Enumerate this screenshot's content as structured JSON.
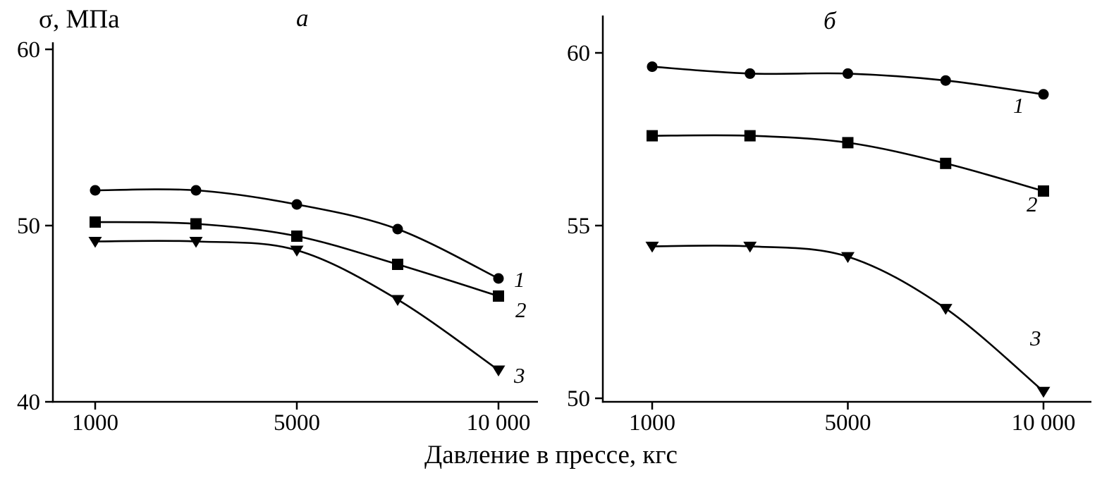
{
  "figure": {
    "y_axis_title": "σ, МПа",
    "x_axis_title": "Давление в прессе, кгс"
  },
  "colors": {
    "line": "#000000",
    "marker": "#000000",
    "text": "#000000",
    "background": "#ffffff"
  },
  "chart_data": [
    {
      "type": "line",
      "panel_label": "а",
      "x_label": "Давление в прессе, кгс",
      "y_label": "σ, МПа",
      "x": [
        1000,
        3000,
        5000,
        7500,
        10000
      ],
      "x_tick_labels": [
        "1000",
        "5000",
        "10 000"
      ],
      "x_tick_positions": [
        0,
        2,
        4
      ],
      "ylim": [
        40,
        60
      ],
      "y_ticks": [
        60,
        50,
        40
      ],
      "grid": false,
      "legend": "inline-numbers",
      "series": [
        {
          "name": "1",
          "marker": "circle",
          "values": [
            52.0,
            52.0,
            51.2,
            49.8,
            47.0
          ]
        },
        {
          "name": "2",
          "marker": "square",
          "values": [
            50.2,
            50.1,
            49.4,
            47.8,
            46.0
          ]
        },
        {
          "name": "3",
          "marker": "triangle-down",
          "values": [
            49.1,
            49.1,
            48.6,
            45.8,
            41.8
          ]
        }
      ]
    },
    {
      "type": "line",
      "panel_label": "б",
      "x_label": "Давление в прессе, кгс",
      "y_label": "σ, МПа",
      "x": [
        1000,
        3000,
        5000,
        7500,
        10000
      ],
      "x_tick_labels": [
        "1000",
        "5000",
        "10 000"
      ],
      "x_tick_positions": [
        0,
        2,
        4
      ],
      "ylim": [
        50,
        60
      ],
      "y_ticks": [
        60,
        55,
        50
      ],
      "grid": false,
      "legend": "inline-numbers",
      "series": [
        {
          "name": "1",
          "marker": "circle",
          "values": [
            59.6,
            59.4,
            59.4,
            59.2,
            58.8
          ]
        },
        {
          "name": "2",
          "marker": "square",
          "values": [
            57.6,
            57.6,
            57.4,
            56.8,
            56.0
          ]
        },
        {
          "name": "3",
          "marker": "triangle-down",
          "values": [
            54.4,
            54.4,
            54.1,
            52.6,
            50.2
          ]
        }
      ]
    }
  ]
}
